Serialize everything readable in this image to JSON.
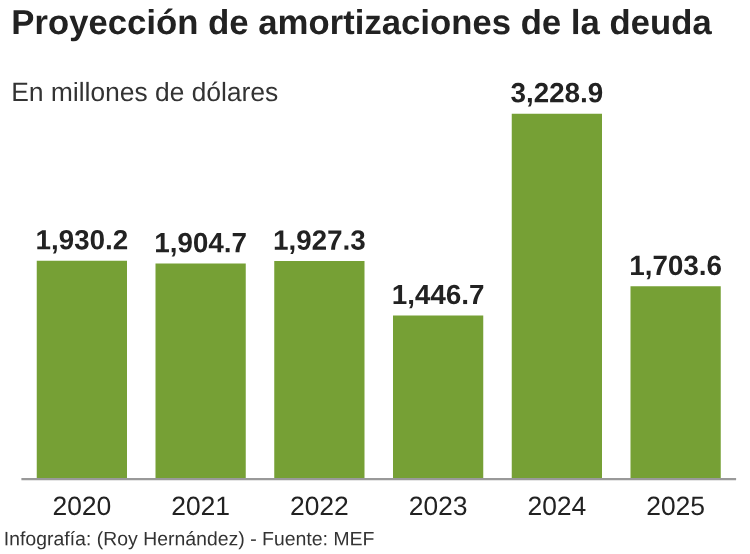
{
  "chart_data": {
    "type": "bar",
    "title": "Proyección de amortizaciones de la deuda",
    "subtitle": "En millones de dólares",
    "categories": [
      "2020",
      "2021",
      "2022",
      "2023",
      "2024",
      "2025"
    ],
    "values": [
      1930.2,
      1904.7,
      1927.3,
      1446.7,
      3228.9,
      1703.6
    ],
    "value_labels": [
      "1,930.2",
      "1,904.7",
      "1,927.3",
      "1,446.7",
      "3,228.9",
      "1,703.6"
    ],
    "color": "#76a035",
    "grid": false,
    "legend": false,
    "annotations": [
      "Infografía: (Roy Hernández) - Fuente: MEF"
    ]
  }
}
